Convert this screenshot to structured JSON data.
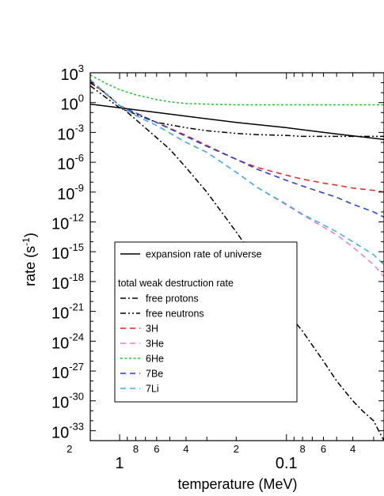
{
  "chart_data": {
    "type": "line",
    "title": "",
    "xlabel": "temperature (MeV)",
    "ylabel": "rate (s",
    "ylabel_sup": "-1",
    "ylabel_end": ")",
    "x_scale": "log",
    "x_reversed": true,
    "y_scale": "log",
    "xlim": [
      1.5,
      0.026
    ],
    "ylim": [
      1e-34,
      1000.0
    ],
    "grid": false,
    "legend_placement": "bottom-left",
    "y_ticks": [
      {
        "base": "10",
        "exp": "3"
      },
      {
        "base": "10",
        "exp": "0"
      },
      {
        "base": "10",
        "exp": "-3"
      },
      {
        "base": "10",
        "exp": "-6"
      },
      {
        "base": "10",
        "exp": "-9"
      },
      {
        "base": "10",
        "exp": "-12"
      },
      {
        "base": "10",
        "exp": "-15"
      },
      {
        "base": "10",
        "exp": "-18"
      },
      {
        "base": "10",
        "exp": "-21"
      },
      {
        "base": "10",
        "exp": "-24"
      },
      {
        "base": "10",
        "exp": "-27"
      },
      {
        "base": "10",
        "exp": "-30"
      },
      {
        "base": "10",
        "exp": "-33"
      }
    ],
    "x_major_ticks": [
      {
        "value": 1,
        "label": "1"
      },
      {
        "value": 0.1,
        "label": "0.1"
      }
    ],
    "x_minor_ticks": [
      {
        "value": 2,
        "label": "2"
      },
      {
        "value": 0.8,
        "label": "8"
      },
      {
        "value": 0.6,
        "label": "6"
      },
      {
        "value": 0.4,
        "label": "4"
      },
      {
        "value": 0.2,
        "label": "2"
      },
      {
        "value": 0.08,
        "label": "8"
      },
      {
        "value": 0.06,
        "label": "6"
      },
      {
        "value": 0.04,
        "label": "4"
      }
    ],
    "legend_heading": "total weak destruction rate",
    "series": [
      {
        "name": "expansion rate of universe",
        "color": "#000000",
        "dash": "solid",
        "x": [
          1.5,
          1.0,
          0.5,
          0.2,
          0.1,
          0.05,
          0.026
        ],
        "y": [
          0.7,
          0.3,
          0.07,
          0.01,
          0.003,
          0.0007,
          0.0002
        ]
      },
      {
        "name": "free protons",
        "color": "#000000",
        "dash": "dashdot",
        "x": [
          1.5,
          1.2,
          1.0,
          0.8,
          0.6,
          0.5,
          0.4,
          0.3,
          0.2,
          0.15,
          0.1,
          0.08,
          0.06,
          0.05,
          0.04,
          0.035,
          0.03,
          0.028,
          0.026
        ],
        "y": [
          100,
          8,
          0.5,
          0.02,
          0.0003,
          2e-05,
          3e-07,
          1e-09,
          1e-13,
          1e-16,
          1e-21,
          1e-23,
          1e-26,
          1e-28,
          1e-30,
          1e-31,
          1e-32,
          1e-33,
          1e-34
        ]
      },
      {
        "name": "free neutrons",
        "color": "#000000",
        "dash": "dashdotdot",
        "x": [
          1.5,
          1.0,
          0.6,
          0.4,
          0.3,
          0.2,
          0.15,
          0.1,
          0.08,
          0.05,
          0.026
        ],
        "y": [
          50,
          0.3,
          0.01,
          0.003,
          0.0015,
          0.0008,
          0.0006,
          0.0005,
          0.0004,
          0.0004,
          0.0004
        ]
      },
      {
        "name": "3H",
        "color": "#e6261f",
        "dash": "dashed",
        "x": [
          1.5,
          1.0,
          0.6,
          0.4,
          0.3,
          0.2,
          0.15,
          0.1,
          0.08,
          0.06,
          0.05,
          0.04,
          0.03,
          0.026
        ],
        "y": [
          150,
          0.5,
          0.01,
          0.0005,
          5e-05,
          2e-06,
          3e-07,
          5e-08,
          2e-08,
          8e-09,
          5e-09,
          2.5e-09,
          1.5e-09,
          1e-09
        ]
      },
      {
        "name": "3He",
        "color": "#f07cc8",
        "dash": "dashed",
        "x": [
          1.5,
          1.0,
          0.8,
          0.6,
          0.4,
          0.3,
          0.2,
          0.15,
          0.1,
          0.08,
          0.06,
          0.05,
          0.04,
          0.03,
          0.026
        ],
        "y": [
          200,
          0.5,
          0.05,
          0.005,
          0.0001,
          1e-05,
          1e-07,
          3e-09,
          5e-11,
          5e-12,
          3e-13,
          5e-14,
          3e-15,
          5e-17,
          3e-18
        ]
      },
      {
        "name": "6He",
        "color": "#22c32e",
        "dash": "dotted",
        "x": [
          1.5,
          1.2,
          1.0,
          0.8,
          0.6,
          0.5,
          0.4,
          0.3,
          0.2,
          0.1,
          0.05,
          0.026
        ],
        "y": [
          600,
          80,
          20,
          6,
          2,
          1.2,
          0.8,
          0.7,
          0.6,
          0.6,
          0.6,
          0.6
        ]
      },
      {
        "name": "7Be",
        "color": "#1f3fcf",
        "dash": "dashed",
        "x": [
          1.5,
          1.0,
          0.6,
          0.4,
          0.3,
          0.2,
          0.15,
          0.1,
          0.08,
          0.06,
          0.05,
          0.04,
          0.03,
          0.026
        ],
        "y": [
          200,
          0.5,
          0.01,
          0.0004,
          4e-05,
          2e-06,
          2e-07,
          1.5e-08,
          4e-09,
          8e-10,
          3e-10,
          6e-11,
          1e-11,
          3e-12
        ]
      },
      {
        "name": "7Li",
        "color": "#3ab0e8",
        "dash": "dashed",
        "x": [
          1.5,
          1.0,
          0.8,
          0.6,
          0.4,
          0.3,
          0.2,
          0.15,
          0.1,
          0.08,
          0.06,
          0.05,
          0.04,
          0.03,
          0.026
        ],
        "y": [
          200,
          0.5,
          0.05,
          0.005,
          0.0001,
          1e-05,
          1e-07,
          3e-09,
          6e-11,
          6e-12,
          5e-13,
          1e-13,
          1e-14,
          5e-16,
          5e-17
        ]
      }
    ]
  }
}
